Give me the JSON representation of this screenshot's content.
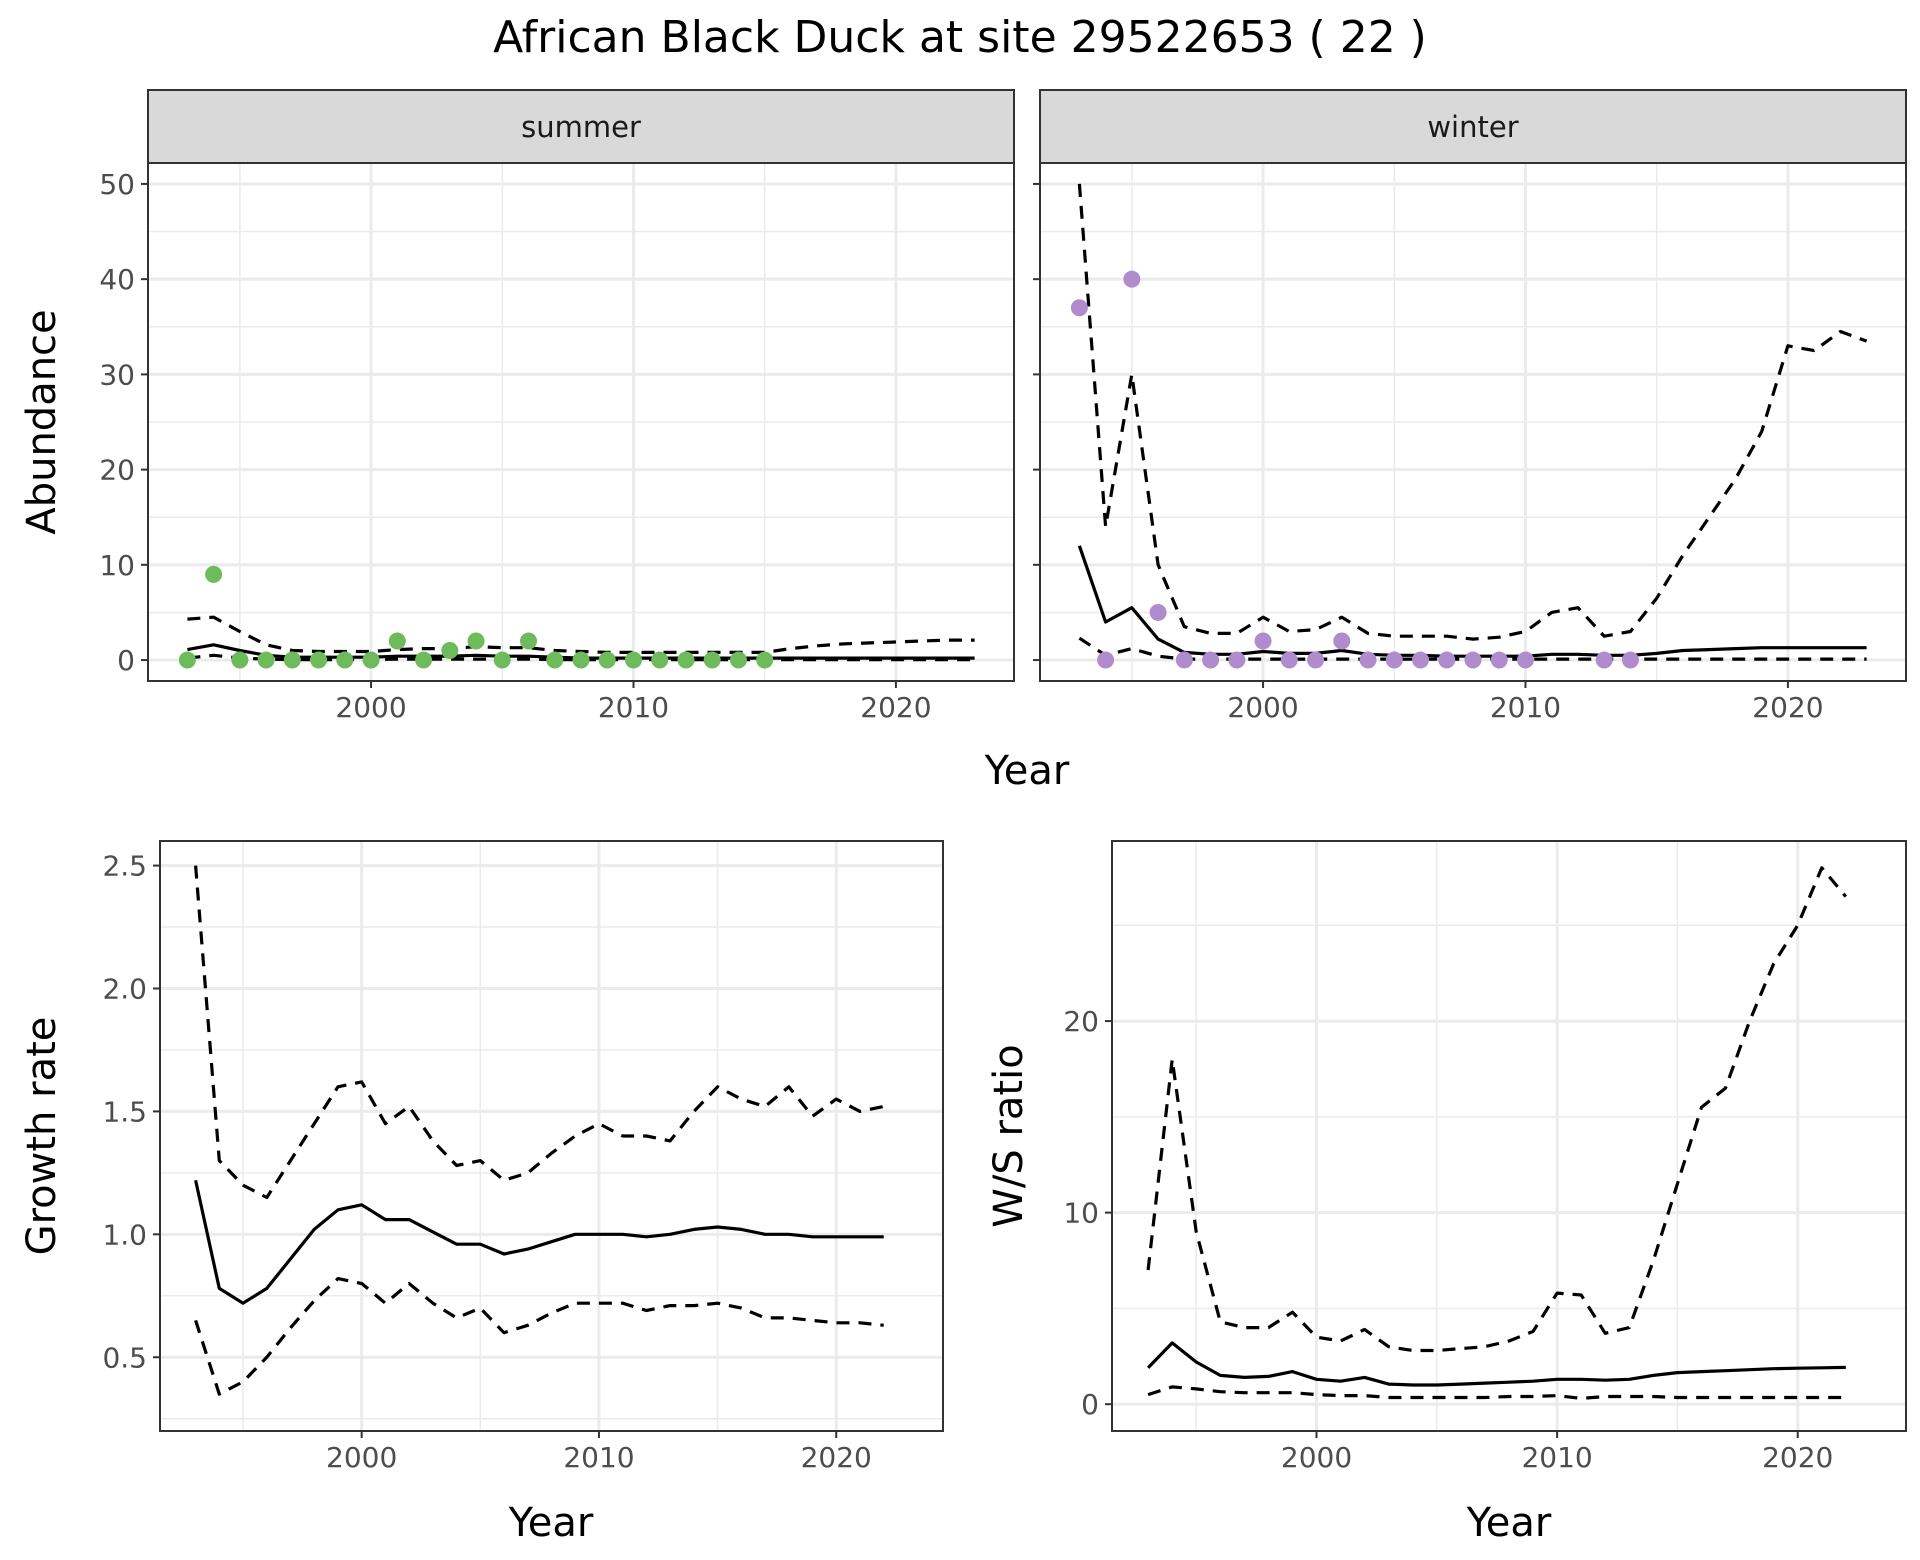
{
  "title": "African Black Duck at site 29522653 ( 22 )",
  "colors": {
    "summer_points": "#6dbb5a",
    "winter_points": "#b08ccc",
    "line": "#000000",
    "strip_bg": "#d9d9d9",
    "grid": "#ebebeb"
  },
  "chart_data": [
    {
      "id": "abundance",
      "type": "line",
      "facets": [
        {
          "label": "summer",
          "point_color": "#6dbb5a",
          "points": {
            "x": [
              1993,
              1994,
              1995,
              1996,
              1997,
              1998,
              1999,
              2000,
              2001,
              2002,
              2003,
              2004,
              2005,
              2006,
              2007,
              2008,
              2009,
              2010,
              2011,
              2012,
              2013,
              2014,
              2015
            ],
            "y": [
              0,
              9,
              0,
              0,
              0,
              0,
              0,
              0,
              2,
              0,
              1,
              2,
              0,
              2,
              0,
              0,
              0,
              0,
              0,
              0,
              0,
              0,
              0
            ]
          },
          "series": [
            {
              "role": "estimate",
              "style": "solid",
              "x": [
                1993,
                1994,
                1995,
                1996,
                1997,
                1998,
                1999,
                2000,
                2001,
                2002,
                2003,
                2004,
                2005,
                2006,
                2007,
                2008,
                2009,
                2010,
                2011,
                2012,
                2013,
                2014,
                2015,
                2016,
                2017,
                2018,
                2019,
                2020,
                2021,
                2022,
                2023
              ],
              "y": [
                1.1,
                1.6,
                1.0,
                0.5,
                0.3,
                0.3,
                0.3,
                0.3,
                0.4,
                0.4,
                0.4,
                0.5,
                0.4,
                0.4,
                0.3,
                0.2,
                0.2,
                0.2,
                0.2,
                0.2,
                0.2,
                0.2,
                0.2,
                0.2,
                0.2,
                0.2,
                0.2,
                0.2,
                0.2,
                0.2,
                0.2
              ]
            },
            {
              "role": "upper",
              "style": "dashed",
              "x": [
                1993,
                1994,
                1995,
                1996,
                1997,
                1998,
                1999,
                2000,
                2001,
                2002,
                2003,
                2004,
                2005,
                2006,
                2007,
                2008,
                2009,
                2010,
                2011,
                2012,
                2013,
                2014,
                2015,
                2016,
                2017,
                2018,
                2019,
                2020,
                2021,
                2022,
                2023
              ],
              "y": [
                4.3,
                4.5,
                3.0,
                1.6,
                1.0,
                0.9,
                0.9,
                0.9,
                1.1,
                1.2,
                1.2,
                1.4,
                1.3,
                1.3,
                1.0,
                0.9,
                0.8,
                0.8,
                0.8,
                0.8,
                0.8,
                0.8,
                0.8,
                1.2,
                1.5,
                1.7,
                1.8,
                1.9,
                2.0,
                2.1,
                2.1
              ]
            },
            {
              "role": "lower",
              "style": "dashed",
              "x": [
                1993,
                1994,
                1995,
                1996,
                1997,
                1998,
                1999,
                2000,
                2001,
                2002,
                2003,
                2004,
                2005,
                2006,
                2007,
                2008,
                2009,
                2010,
                2011,
                2012,
                2013,
                2014,
                2015,
                2016,
                2017,
                2018,
                2019,
                2020,
                2021,
                2022,
                2023
              ],
              "y": [
                0.2,
                0.5,
                0.2,
                0.1,
                0.05,
                0.05,
                0.05,
                0.05,
                0.1,
                0.1,
                0.1,
                0.1,
                0.1,
                0.1,
                0.05,
                0.05,
                0.05,
                0.05,
                0.05,
                0.05,
                0.05,
                0.05,
                0.05,
                0.05,
                0.05,
                0.05,
                0.05,
                0.05,
                0.05,
                0.05,
                0.05
              ]
            }
          ]
        },
        {
          "label": "winter",
          "point_color": "#b08ccc",
          "points": {
            "x": [
              1993,
              1994,
              1995,
              1996,
              1997,
              1998,
              1999,
              2000,
              2001,
              2002,
              2003,
              2004,
              2005,
              2006,
              2007,
              2008,
              2009,
              2010,
              2013,
              2014
            ],
            "y": [
              37,
              0,
              40,
              5,
              0,
              0,
              0,
              2,
              0,
              0,
              2,
              0,
              0,
              0,
              0,
              0,
              0,
              0,
              0,
              0
            ]
          },
          "series": [
            {
              "role": "estimate",
              "style": "solid",
              "x": [
                1993,
                1994,
                1995,
                1996,
                1997,
                1998,
                1999,
                2000,
                2001,
                2002,
                2003,
                2004,
                2005,
                2006,
                2007,
                2008,
                2009,
                2010,
                2011,
                2012,
                2013,
                2014,
                2015,
                2016,
                2017,
                2018,
                2019,
                2020,
                2021,
                2022,
                2023
              ],
              "y": [
                12,
                4,
                5.5,
                2.2,
                0.8,
                0.6,
                0.6,
                0.9,
                0.7,
                0.7,
                1.0,
                0.6,
                0.5,
                0.5,
                0.4,
                0.4,
                0.4,
                0.4,
                0.6,
                0.6,
                0.5,
                0.5,
                0.7,
                1.0,
                1.1,
                1.2,
                1.3,
                1.3,
                1.3,
                1.3,
                1.3
              ]
            },
            {
              "role": "upper",
              "style": "dashed",
              "x": [
                1993,
                1994,
                1995,
                1996,
                1997,
                1998,
                1999,
                2000,
                2001,
                2002,
                2003,
                2004,
                2005,
                2006,
                2007,
                2008,
                2009,
                2010,
                2011,
                2012,
                2013,
                2014,
                2015,
                2016,
                2017,
                2018,
                2019,
                2020,
                2021,
                2022,
                2023
              ],
              "y": [
                50,
                14,
                30,
                10,
                3.5,
                2.8,
                2.8,
                4.5,
                3.0,
                3.2,
                4.5,
                2.8,
                2.5,
                2.5,
                2.5,
                2.2,
                2.4,
                3.0,
                5.0,
                5.5,
                2.5,
                3.0,
                6.5,
                11,
                15,
                19,
                24,
                33,
                32.5,
                34.5,
                33.5
              ]
            },
            {
              "role": "lower",
              "style": "dashed",
              "x": [
                1993,
                1994,
                1995,
                1996,
                1997,
                1998,
                1999,
                2000,
                2001,
                2002,
                2003,
                2004,
                2005,
                2006,
                2007,
                2008,
                2009,
                2010,
                2011,
                2012,
                2013,
                2014,
                2015,
                2016,
                2017,
                2018,
                2019,
                2020,
                2021,
                2022,
                2023
              ],
              "y": [
                2.3,
                0.5,
                1.2,
                0.4,
                0.1,
                0.1,
                0.1,
                0.1,
                0.1,
                0.1,
                0.1,
                0.1,
                0.1,
                0.1,
                0.1,
                0.1,
                0.1,
                0.1,
                0.1,
                0.1,
                0.1,
                0.1,
                0.1,
                0.1,
                0.1,
                0.1,
                0.1,
                0.1,
                0.1,
                0.1,
                0.1
              ]
            }
          ]
        }
      ],
      "xlabel": "Year",
      "ylabel": "Abundance",
      "xlim": [
        1991.5,
        2024.5
      ],
      "ylim": [
        -2.2,
        52.2
      ],
      "xticks": [
        2000,
        2010,
        2020
      ],
      "yticks": [
        0,
        10,
        20,
        30,
        40,
        50
      ],
      "grid": true
    },
    {
      "id": "growth",
      "type": "line",
      "series": [
        {
          "role": "estimate",
          "style": "solid",
          "x": [
            1993,
            1994,
            1995,
            1996,
            1997,
            1998,
            1999,
            2000,
            2001,
            2002,
            2003,
            2004,
            2005,
            2006,
            2007,
            2008,
            2009,
            2010,
            2011,
            2012,
            2013,
            2014,
            2015,
            2016,
            2017,
            2018,
            2019,
            2020,
            2021,
            2022
          ],
          "y": [
            1.22,
            0.78,
            0.72,
            0.78,
            0.9,
            1.02,
            1.1,
            1.12,
            1.06,
            1.06,
            1.01,
            0.96,
            0.96,
            0.92,
            0.94,
            0.97,
            1.0,
            1.0,
            1.0,
            0.99,
            1.0,
            1.02,
            1.03,
            1.02,
            1.0,
            1.0,
            0.99,
            0.99,
            0.99,
            0.99
          ]
        },
        {
          "role": "upper",
          "style": "dashed",
          "x": [
            1993,
            1994,
            1995,
            1996,
            1997,
            1998,
            1999,
            2000,
            2001,
            2002,
            2003,
            2004,
            2005,
            2006,
            2007,
            2008,
            2009,
            2010,
            2011,
            2012,
            2013,
            2014,
            2015,
            2016,
            2017,
            2018,
            2019,
            2020,
            2021,
            2022
          ],
          "y": [
            2.5,
            1.3,
            1.2,
            1.15,
            1.3,
            1.45,
            1.6,
            1.62,
            1.45,
            1.52,
            1.38,
            1.28,
            1.3,
            1.22,
            1.25,
            1.33,
            1.4,
            1.45,
            1.4,
            1.4,
            1.38,
            1.5,
            1.6,
            1.55,
            1.52,
            1.6,
            1.48,
            1.55,
            1.5,
            1.52
          ]
        },
        {
          "role": "lower",
          "style": "dashed",
          "x": [
            1993,
            1994,
            1995,
            1996,
            1997,
            1998,
            1999,
            2000,
            2001,
            2002,
            2003,
            2004,
            2005,
            2006,
            2007,
            2008,
            2009,
            2010,
            2011,
            2012,
            2013,
            2014,
            2015,
            2016,
            2017,
            2018,
            2019,
            2020,
            2021,
            2022
          ],
          "y": [
            0.65,
            0.35,
            0.4,
            0.5,
            0.62,
            0.73,
            0.82,
            0.8,
            0.72,
            0.8,
            0.72,
            0.66,
            0.7,
            0.6,
            0.63,
            0.68,
            0.72,
            0.72,
            0.72,
            0.69,
            0.71,
            0.71,
            0.72,
            0.7,
            0.66,
            0.66,
            0.65,
            0.64,
            0.64,
            0.63
          ]
        }
      ],
      "xlabel": "Year",
      "ylabel": "Growth rate",
      "xlim": [
        1991.5,
        2024.5
      ],
      "ylim": [
        0.2,
        2.6
      ],
      "xticks": [
        2000,
        2010,
        2020
      ],
      "yticks": [
        0.5,
        1.0,
        1.5,
        2.0,
        2.5
      ],
      "ytick_labels": [
        "0.5",
        "1.0",
        "1.5",
        "2.0",
        "2.5"
      ],
      "grid": true
    },
    {
      "id": "ratio",
      "type": "line",
      "series": [
        {
          "role": "estimate",
          "style": "solid",
          "x": [
            1993,
            1994,
            1995,
            1996,
            1997,
            1998,
            1999,
            2000,
            2001,
            2002,
            2003,
            2004,
            2005,
            2006,
            2007,
            2008,
            2009,
            2010,
            2011,
            2012,
            2013,
            2014,
            2015,
            2016,
            2017,
            2018,
            2019,
            2020,
            2021,
            2022
          ],
          "y": [
            1.9,
            3.2,
            2.2,
            1.5,
            1.4,
            1.45,
            1.7,
            1.3,
            1.2,
            1.4,
            1.05,
            1.0,
            1.0,
            1.05,
            1.1,
            1.15,
            1.2,
            1.3,
            1.3,
            1.25,
            1.3,
            1.5,
            1.65,
            1.7,
            1.75,
            1.8,
            1.85,
            1.88,
            1.9,
            1.92
          ]
        },
        {
          "role": "upper",
          "style": "dashed",
          "x": [
            1993,
            1994,
            1995,
            1996,
            1997,
            1998,
            1999,
            2000,
            2001,
            2002,
            2003,
            2004,
            2005,
            2006,
            2007,
            2008,
            2009,
            2010,
            2011,
            2012,
            2013,
            2014,
            2015,
            2016,
            2017,
            2018,
            2019,
            2020,
            2021,
            2022
          ],
          "y": [
            7,
            18,
            9,
            4.3,
            4.0,
            4.0,
            4.8,
            3.5,
            3.3,
            3.9,
            3.0,
            2.8,
            2.8,
            2.9,
            3.0,
            3.3,
            3.8,
            5.8,
            5.7,
            3.7,
            4.0,
            7.5,
            11.5,
            15.5,
            16.5,
            20,
            23,
            25,
            28,
            26.5
          ]
        },
        {
          "role": "lower",
          "style": "dashed",
          "x": [
            1993,
            1994,
            1995,
            1996,
            1997,
            1998,
            1999,
            2000,
            2001,
            2002,
            2003,
            2004,
            2005,
            2006,
            2007,
            2008,
            2009,
            2010,
            2011,
            2012,
            2013,
            2014,
            2015,
            2016,
            2017,
            2018,
            2019,
            2020,
            2021,
            2022
          ],
          "y": [
            0.5,
            0.9,
            0.8,
            0.65,
            0.6,
            0.6,
            0.6,
            0.5,
            0.45,
            0.45,
            0.35,
            0.35,
            0.35,
            0.35,
            0.35,
            0.4,
            0.4,
            0.45,
            0.3,
            0.4,
            0.4,
            0.4,
            0.35,
            0.35,
            0.35,
            0.35,
            0.35,
            0.35,
            0.35,
            0.35
          ]
        }
      ],
      "xlabel": "Year",
      "ylabel": "W/S ratio",
      "xlim": [
        1991.5,
        2024.5
      ],
      "ylim": [
        -1.4,
        29.4
      ],
      "xticks": [
        2000,
        2010,
        2020
      ],
      "yticks": [
        0,
        10,
        20
      ],
      "grid": true
    }
  ]
}
